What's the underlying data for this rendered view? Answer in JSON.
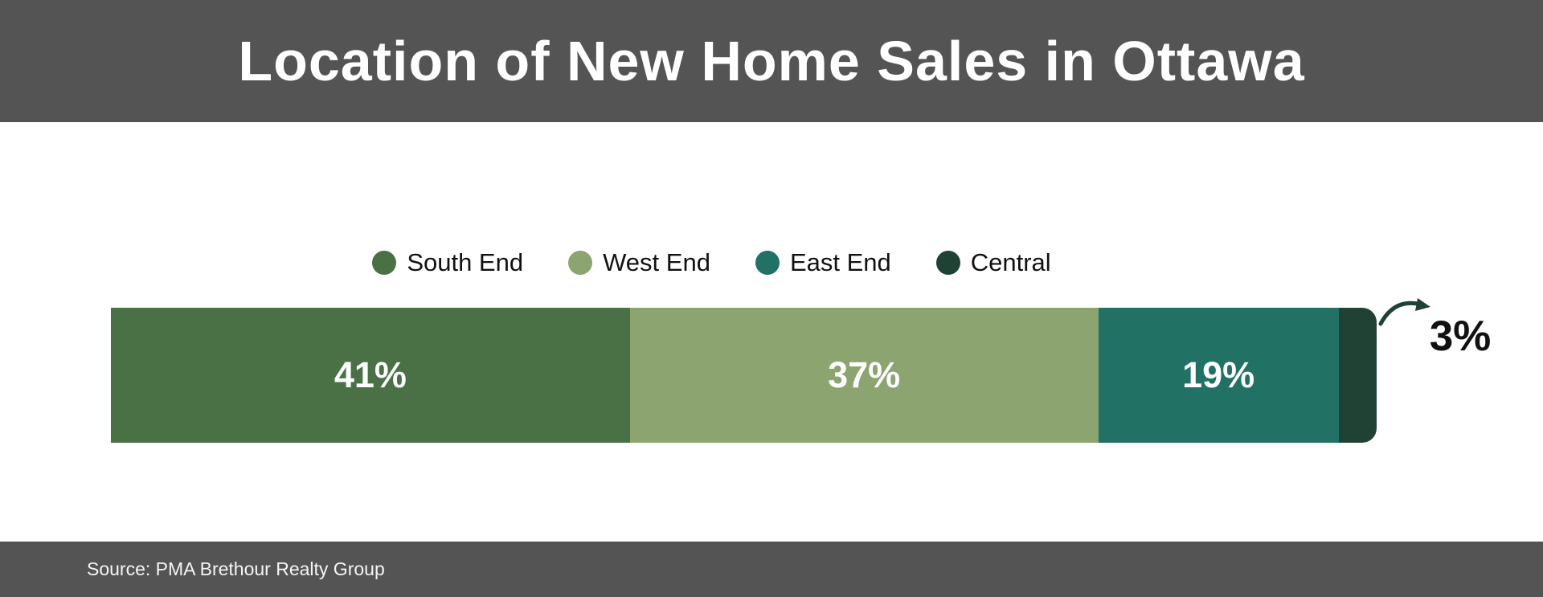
{
  "header": {
    "title": "Location of New Home Sales in Ottawa"
  },
  "footer": {
    "source": "Source: PMA Brethour Realty Group"
  },
  "colors": {
    "band_gray": "#545454",
    "background": "#ffffff",
    "segment_label_white": "#ffffff",
    "annotation_black": "#111111",
    "arrow_green": "#1f4235",
    "south_end_green": "#4a7146",
    "west_end_sage": "#8ca46f",
    "east_end_teal": "#217164",
    "central_dark_green": "#1f4235"
  },
  "chart_data": {
    "type": "bar",
    "subtype": "horizontal-stacked",
    "title": "Location of New Home Sales in Ottawa",
    "categories": [
      "South End",
      "West End",
      "East End",
      "Central"
    ],
    "values": [
      41,
      37,
      19,
      3
    ],
    "unit": "%",
    "segment_colors": [
      "#4a7146",
      "#8ca46f",
      "#217164",
      "#1f4235"
    ],
    "data_labels": [
      "41%",
      "37%",
      "19%",
      "3%"
    ],
    "legend_position": "top",
    "legend_entries": [
      "South End",
      "West End",
      "East End",
      "Central"
    ],
    "grid": false,
    "axis_labels_shown": false,
    "annotation": {
      "text": "3%",
      "target_category": "Central",
      "style": "curved-arrow-callout"
    },
    "min_inside_label_value": 5
  }
}
